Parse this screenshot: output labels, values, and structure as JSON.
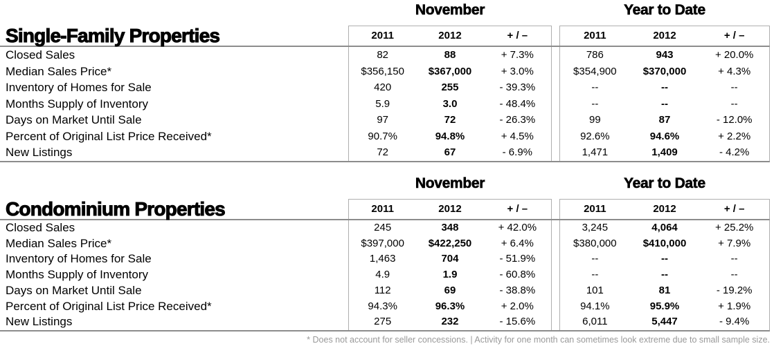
{
  "report": {
    "groups": [
      {
        "label": "November"
      },
      {
        "label": "Year to Date"
      }
    ],
    "sub_headers": [
      "2011",
      "2012",
      "+ / –"
    ],
    "sections": [
      {
        "title": "Single-Family Properties",
        "rows": [
          {
            "label": "Closed Sales",
            "nov": [
              "82",
              "88",
              "+ 7.3%"
            ],
            "ytd": [
              "786",
              "943",
              "+ 20.0%"
            ]
          },
          {
            "label": "Median Sales Price*",
            "nov": [
              "$356,150",
              "$367,000",
              "+ 3.0%"
            ],
            "ytd": [
              "$354,900",
              "$370,000",
              "+ 4.3%"
            ]
          },
          {
            "label": "Inventory of Homes for Sale",
            "nov": [
              "420",
              "255",
              "- 39.3%"
            ],
            "ytd": [
              "--",
              "--",
              "--"
            ]
          },
          {
            "label": "Months Supply of Inventory",
            "nov": [
              "5.9",
              "3.0",
              "- 48.4%"
            ],
            "ytd": [
              "--",
              "--",
              "--"
            ]
          },
          {
            "label": "Days on Market Until Sale",
            "nov": [
              "97",
              "72",
              "- 26.3%"
            ],
            "ytd": [
              "99",
              "87",
              "- 12.0%"
            ]
          },
          {
            "label": "Percent of Original List Price Received*",
            "nov": [
              "90.7%",
              "94.8%",
              "+ 4.5%"
            ],
            "ytd": [
              "92.6%",
              "94.6%",
              "+ 2.2%"
            ]
          },
          {
            "label": "New Listings",
            "nov": [
              "72",
              "67",
              "- 6.9%"
            ],
            "ytd": [
              "1,471",
              "1,409",
              "- 4.2%"
            ]
          }
        ]
      },
      {
        "title": "Condominium Properties",
        "rows": [
          {
            "label": "Closed Sales",
            "nov": [
              "245",
              "348",
              "+ 42.0%"
            ],
            "ytd": [
              "3,245",
              "4,064",
              "+ 25.2%"
            ]
          },
          {
            "label": "Median Sales Price*",
            "nov": [
              "$397,000",
              "$422,250",
              "+ 6.4%"
            ],
            "ytd": [
              "$380,000",
              "$410,000",
              "+ 7.9%"
            ]
          },
          {
            "label": "Inventory of Homes for Sale",
            "nov": [
              "1,463",
              "704",
              "- 51.9%"
            ],
            "ytd": [
              "--",
              "--",
              "--"
            ]
          },
          {
            "label": "Months Supply of Inventory",
            "nov": [
              "4.9",
              "1.9",
              "- 60.8%"
            ],
            "ytd": [
              "--",
              "--",
              "--"
            ]
          },
          {
            "label": "Days on Market Until Sale",
            "nov": [
              "112",
              "69",
              "- 38.8%"
            ],
            "ytd": [
              "101",
              "81",
              "- 19.2%"
            ]
          },
          {
            "label": "Percent of Original List Price Received*",
            "nov": [
              "94.3%",
              "96.3%",
              "+ 2.0%"
            ],
            "ytd": [
              "94.1%",
              "95.9%",
              "+ 1.9%"
            ]
          },
          {
            "label": "New Listings",
            "nov": [
              "275",
              "232",
              "- 15.6%"
            ],
            "ytd": [
              "6,011",
              "5,447",
              "- 9.4%"
            ]
          }
        ]
      }
    ],
    "footnote": "* Does not account for seller concessions.  |  Activity for one month can sometimes look extreme due to small sample size.",
    "colors": {
      "border": "#aeaeae",
      "rule": "#8c8c8c",
      "text": "#000000",
      "footnote": "#999999"
    }
  }
}
